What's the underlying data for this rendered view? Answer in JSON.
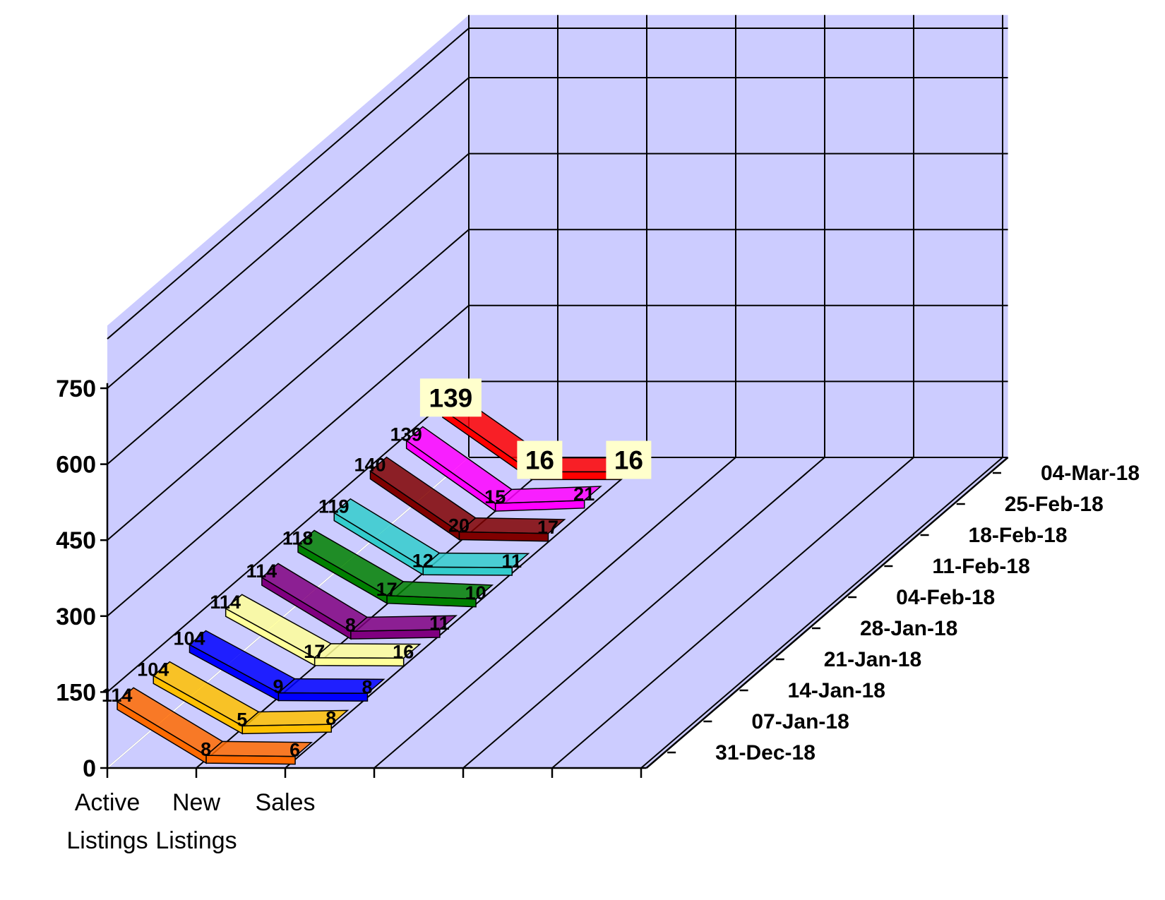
{
  "chart_data": {
    "type": "line",
    "title": "",
    "xlabel": "",
    "ylabel": "",
    "ylim": [
      0,
      750
    ],
    "yticks": [
      0,
      150,
      300,
      450,
      600,
      750
    ],
    "grid": true,
    "categories": [
      [
        "Active",
        "Listings"
      ],
      [
        "New",
        "Listings"
      ],
      [
        "Sales"
      ]
    ],
    "series": [
      {
        "name": "31-Dec-18",
        "values": [
          114,
          8,
          6
        ],
        "color": "#ff6a00"
      },
      {
        "name": "07-Jan-18",
        "values": [
          104,
          5,
          8
        ],
        "color": "#ffc000"
      },
      {
        "name": "14-Jan-18",
        "values": [
          104,
          9,
          8
        ],
        "color": "#0000ff"
      },
      {
        "name": "21-Jan-18",
        "values": [
          114,
          17,
          16
        ],
        "color": "#ffff99"
      },
      {
        "name": "28-Jan-18",
        "values": [
          114,
          8,
          11
        ],
        "color": "#800080"
      },
      {
        "name": "04-Feb-18",
        "values": [
          118,
          17,
          10
        ],
        "color": "#008000"
      },
      {
        "name": "11-Feb-18",
        "values": [
          119,
          12,
          11
        ],
        "color": "#33cccc"
      },
      {
        "name": "18-Feb-18",
        "values": [
          140,
          20,
          17
        ],
        "color": "#800000"
      },
      {
        "name": "25-Feb-18",
        "values": [
          139,
          15,
          21
        ],
        "color": "#ff00ff"
      },
      {
        "name": "04-Mar-18",
        "values": [
          139,
          16,
          16
        ],
        "color": "#ff0000"
      }
    ]
  },
  "style": {
    "wall_color": "#ccccff",
    "grid_color": "#000000",
    "highlight_label_bg": "#ffffcc"
  }
}
